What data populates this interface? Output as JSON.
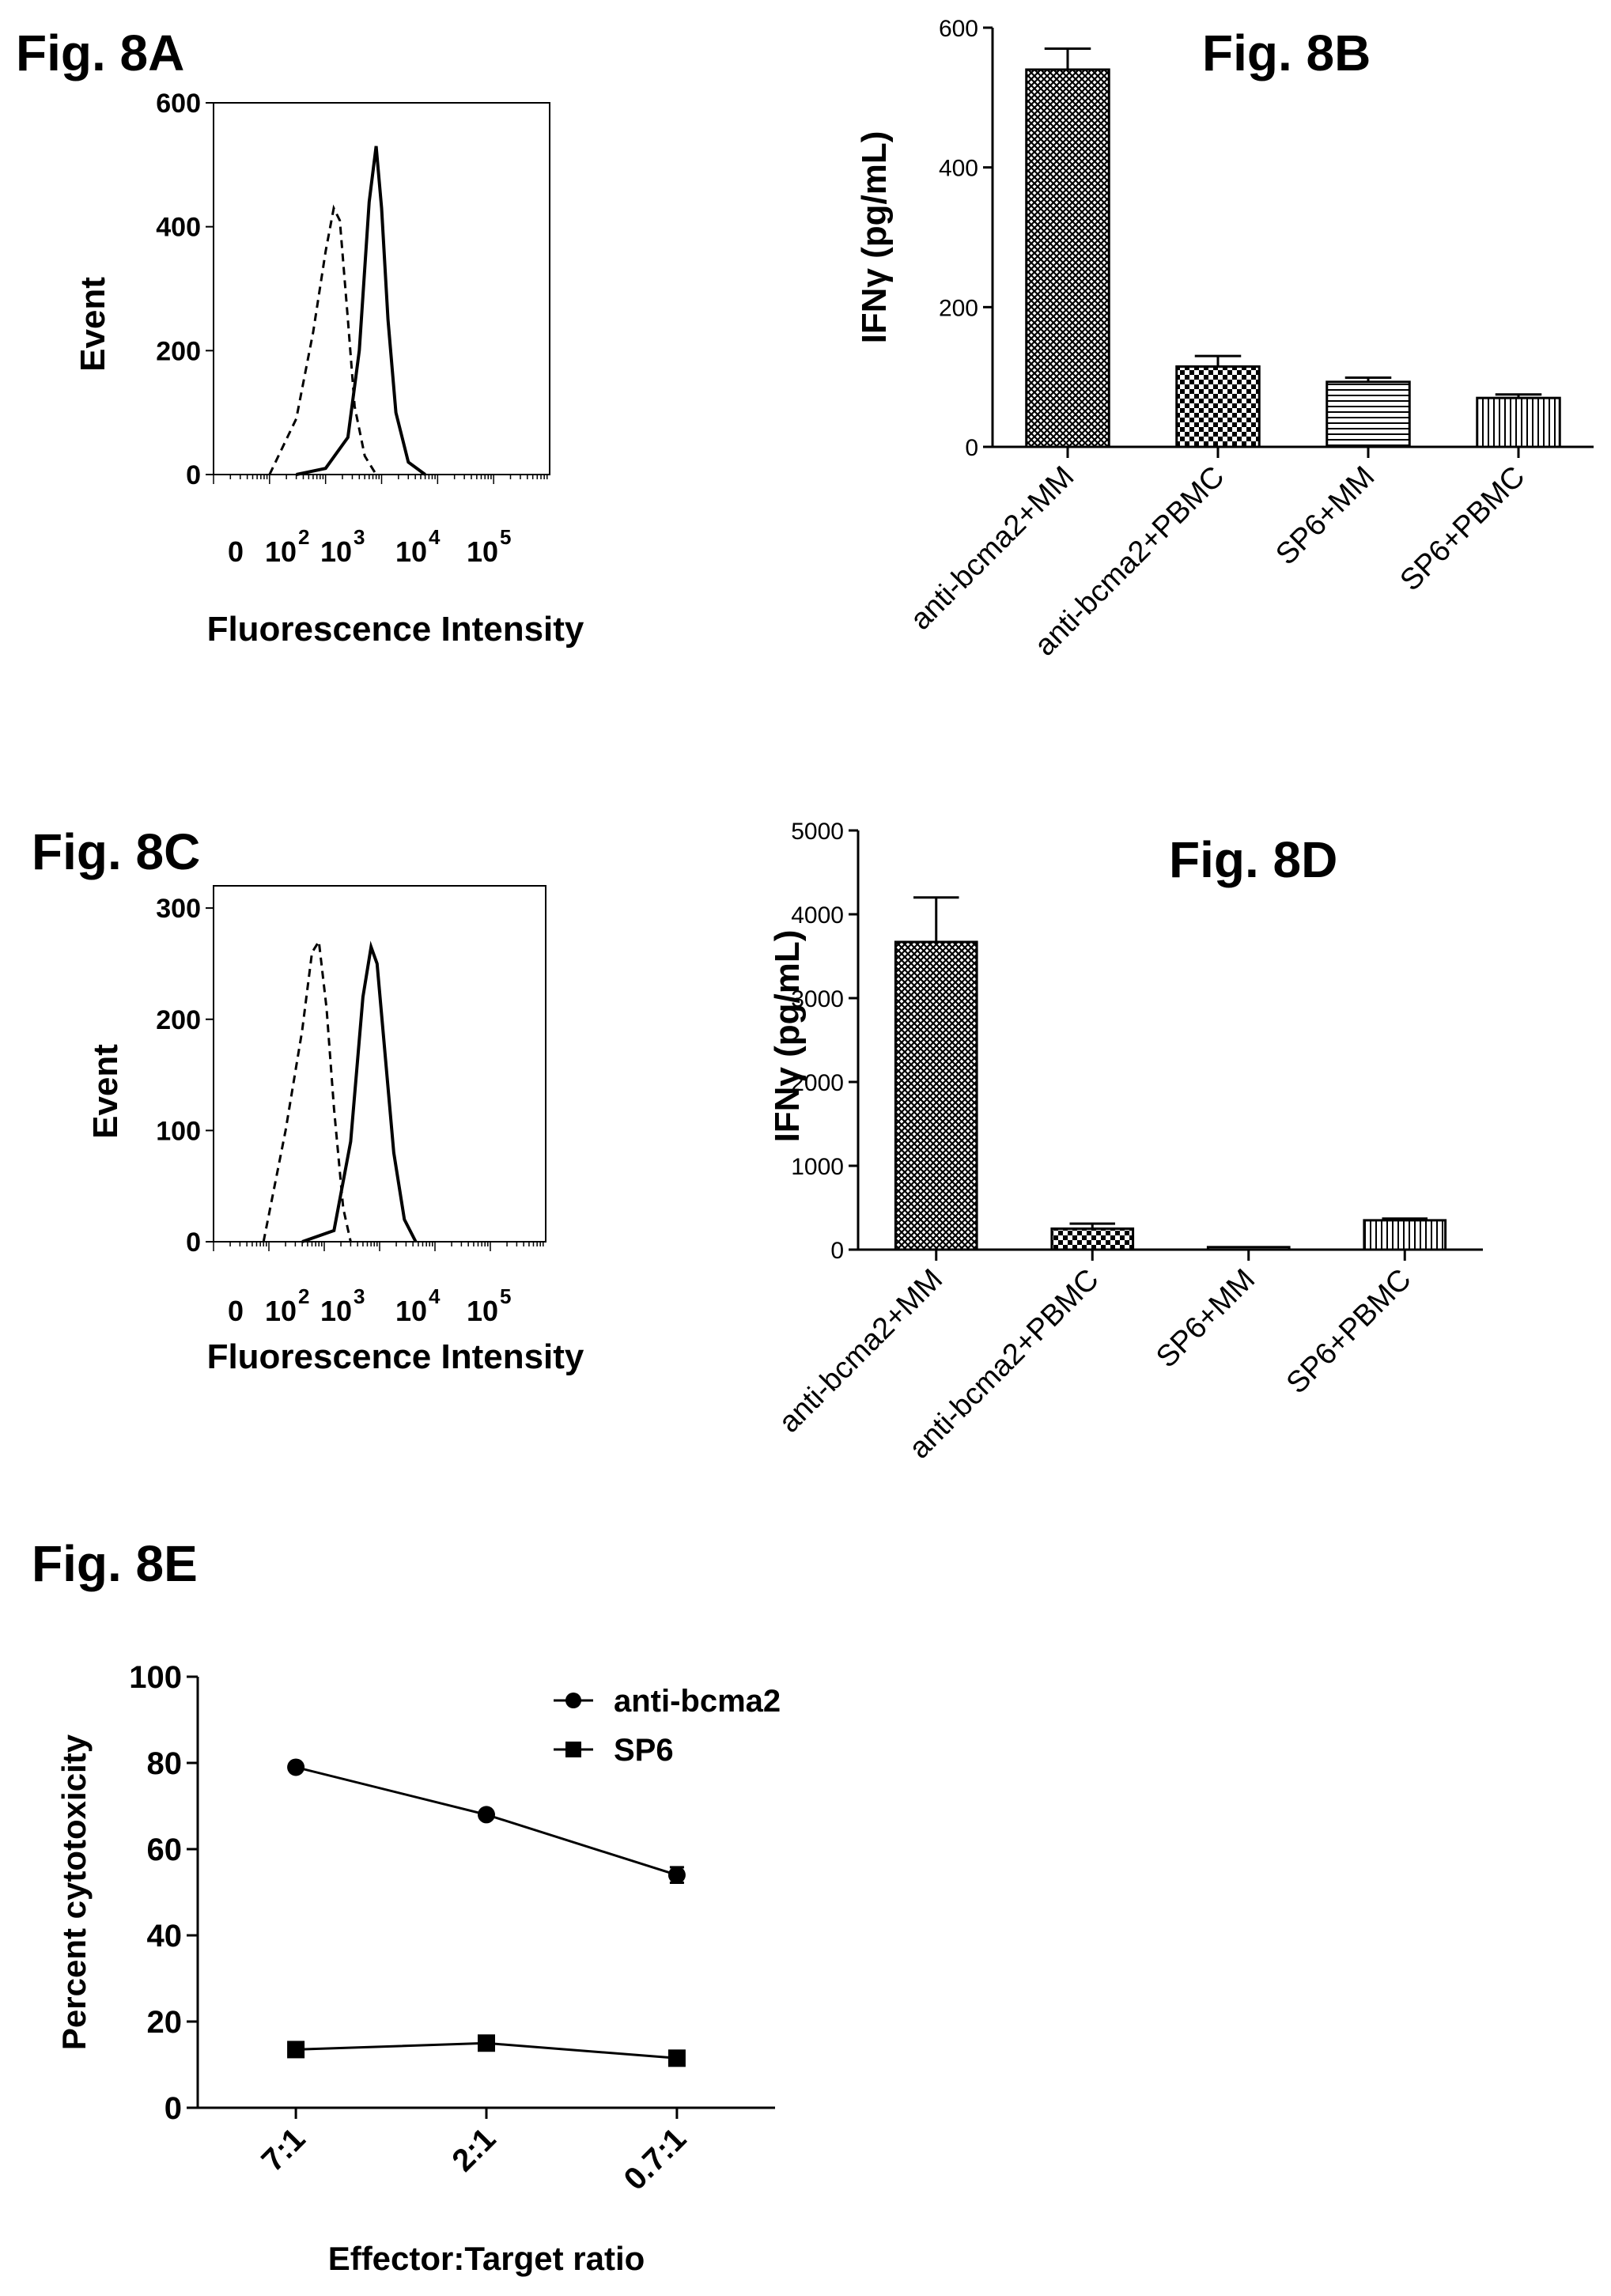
{
  "figures": {
    "a": "Fig. 8A",
    "b": "Fig. 8B",
    "c": "Fig. 8C",
    "d": "Fig. 8D",
    "e": "Fig. 8E"
  },
  "chart_data": [
    {
      "id": "8A",
      "type": "line",
      "title": "Fig. 8A",
      "xlabel": "Fluorescence Intensity",
      "ylabel": "Event",
      "x_scale": "log",
      "xlim": [
        1,
        1000000
      ],
      "ylim": [
        0,
        600
      ],
      "y_ticks": [
        "0",
        "200",
        "400",
        "600"
      ],
      "x_tick_labels": [
        "0",
        "10",
        "2",
        "10",
        "3",
        "10",
        "4",
        "10",
        "5"
      ],
      "series": [
        {
          "style": "dashed",
          "x": [
            10,
            30,
            60,
            100,
            140,
            180,
            250,
            330,
            500,
            800
          ],
          "y": [
            0,
            90,
            230,
            360,
            430,
            410,
            250,
            110,
            30,
            0
          ]
        },
        {
          "style": "solid",
          "x": [
            30,
            100,
            250,
            400,
            600,
            800,
            1000,
            1300,
            1800,
            3000,
            6000
          ],
          "y": [
            0,
            10,
            60,
            200,
            440,
            530,
            430,
            250,
            100,
            20,
            0
          ]
        }
      ]
    },
    {
      "id": "8B",
      "type": "bar",
      "title": "Fig. 8B",
      "ylabel": "IFNγ (pg/mL)",
      "ylim": [
        0,
        600
      ],
      "y_ticks": [
        "0",
        "200",
        "400",
        "600"
      ],
      "categories": [
        "anti-bcma2+MM",
        "anti-bcma2+PBMC",
        "SP6+MM",
        "SP6+PBMC"
      ],
      "values": [
        540,
        115,
        93,
        70
      ],
      "errors": [
        30,
        15,
        6,
        5
      ],
      "patterns": [
        "crosshatch",
        "checker",
        "horizontal",
        "vertical"
      ]
    },
    {
      "id": "8C",
      "type": "line",
      "title": "Fig. 8C",
      "xlabel": "Fluorescence Intensity",
      "ylabel": "Event",
      "x_scale": "log",
      "xlim": [
        1,
        1000000
      ],
      "ylim": [
        0,
        320
      ],
      "y_ticks": [
        "0",
        "100",
        "200",
        "300"
      ],
      "x_tick_labels": [
        "0",
        "10",
        "2",
        "10",
        "3",
        "10",
        "4",
        "10",
        "5"
      ],
      "series": [
        {
          "style": "dashed",
          "x": [
            8,
            20,
            40,
            60,
            80,
            110,
            150,
            220,
            300
          ],
          "y": [
            0,
            100,
            190,
            260,
            270,
            210,
            120,
            30,
            0
          ]
        },
        {
          "style": "solid",
          "x": [
            40,
            150,
            300,
            500,
            700,
            900,
            1200,
            1800,
            2800,
            4500
          ],
          "y": [
            0,
            10,
            90,
            220,
            265,
            250,
            180,
            80,
            20,
            0
          ]
        }
      ]
    },
    {
      "id": "8D",
      "type": "bar",
      "title": "Fig. 8D",
      "ylabel": "IFNγ (pg/mL)",
      "ylim": [
        0,
        5000
      ],
      "y_ticks": [
        "0",
        "1000",
        "2000",
        "3000",
        "4000",
        "5000"
      ],
      "categories": [
        "anti-bcma2+MM",
        "anti-bcma2+PBMC",
        "SP6+MM",
        "SP6+PBMC"
      ],
      "values": [
        3670,
        250,
        30,
        350
      ],
      "errors": [
        530,
        60,
        0,
        20
      ],
      "patterns": [
        "crosshatch",
        "checker",
        "horizontal",
        "vertical"
      ]
    },
    {
      "id": "8E",
      "type": "line",
      "title": "Fig. 8E",
      "xlabel": "Effector:Target ratio",
      "ylabel": "Percent cytotoxicity",
      "ylim": [
        0,
        100
      ],
      "y_ticks": [
        "0",
        "20",
        "40",
        "60",
        "80",
        "100"
      ],
      "categories": [
        "7:1",
        "2:1",
        "0.7:1"
      ],
      "legend_position": "top-right",
      "series": [
        {
          "name": "anti-bcma2",
          "marker": "circle",
          "values": [
            79,
            68,
            54
          ],
          "errors": [
            0.8,
            0.8,
            1.8
          ]
        },
        {
          "name": "SP6",
          "marker": "square",
          "values": [
            13.5,
            15,
            11.5
          ],
          "errors": [
            0.6,
            0.6,
            0.8
          ]
        }
      ]
    }
  ]
}
